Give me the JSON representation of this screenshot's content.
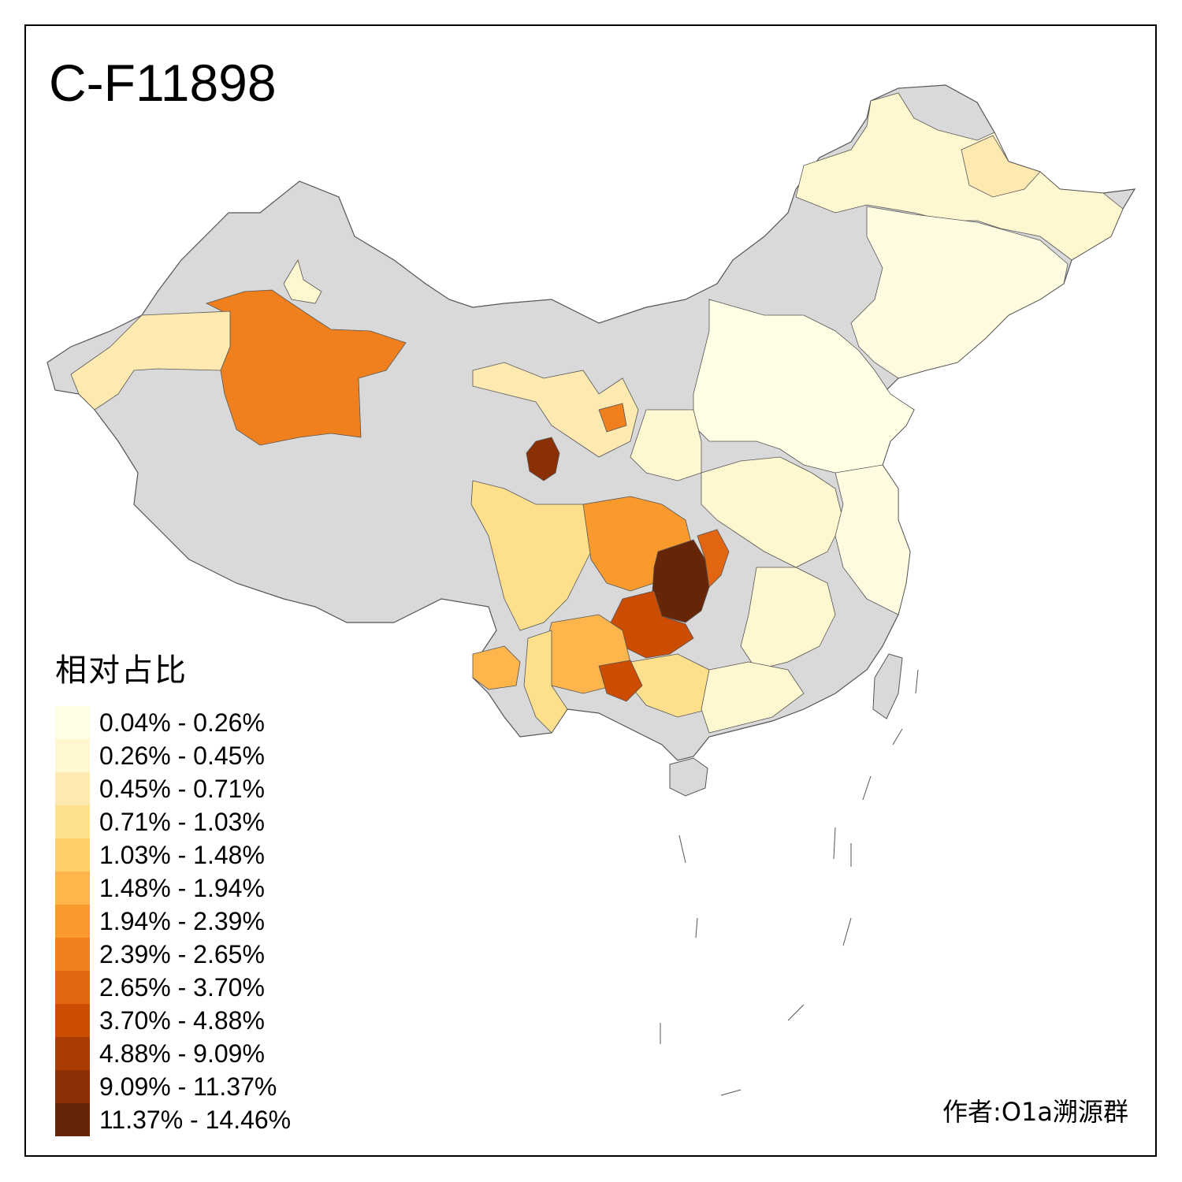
{
  "map": {
    "title": "C-F11898",
    "no_data_color": "#d9d9d9",
    "border_color": "#555555"
  },
  "legend": {
    "title": "相对占比",
    "items": [
      {
        "label": "0.04% - 0.26%",
        "color": "#ffffe5"
      },
      {
        "label": "0.26% - 0.45%",
        "color": "#fff7d0"
      },
      {
        "label": "0.45% - 0.71%",
        "color": "#fee9b0"
      },
      {
        "label": "0.71% - 1.03%",
        "color": "#fee08c"
      },
      {
        "label": "1.03% - 1.48%",
        "color": "#fed06a"
      },
      {
        "label": "1.48% - 1.94%",
        "color": "#feb64c"
      },
      {
        "label": "1.94% - 2.39%",
        "color": "#fb9a2c"
      },
      {
        "label": "2.39% - 2.65%",
        "color": "#f0801e"
      },
      {
        "label": "2.65% - 3.70%",
        "color": "#e26612"
      },
      {
        "label": "3.70% - 4.88%",
        "color": "#cc4c02"
      },
      {
        "label": "4.88% - 9.09%",
        "color": "#a93c04"
      },
      {
        "label": "9.09% - 11.37%",
        "color": "#8a3004"
      },
      {
        "label": "11.37% - 14.46%",
        "color": "#662506"
      }
    ]
  },
  "credit": "作者:O1a溯源群"
}
